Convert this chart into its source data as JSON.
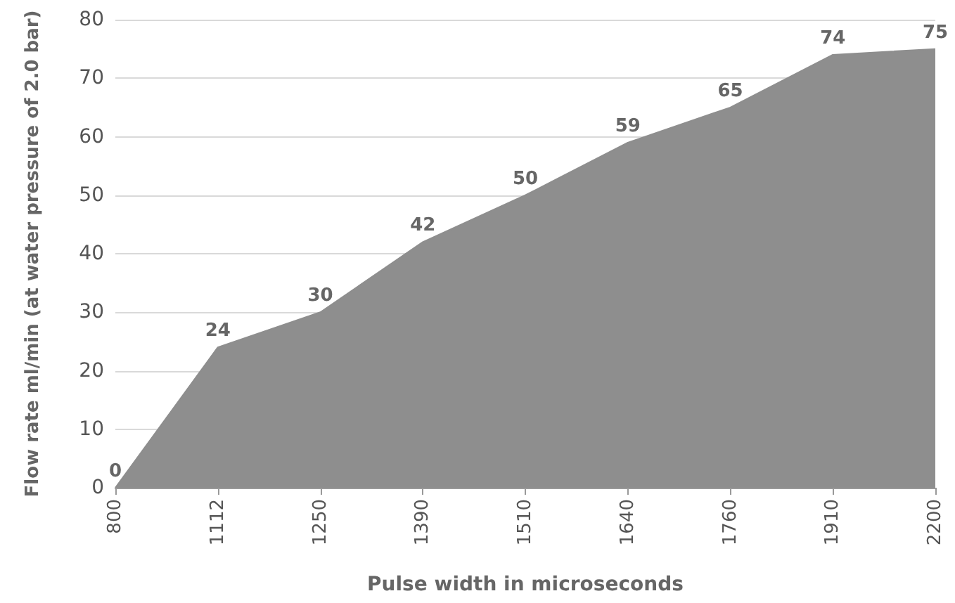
{
  "chart_data": {
    "type": "area",
    "xlabel": "Pulse width in microseconds",
    "ylabel": "Flow rate ml/min (at water pressure of 2.0 bar)",
    "categories": [
      "800",
      "1112",
      "1250",
      "1390",
      "1510",
      "1640",
      "1760",
      "1910",
      "2200"
    ],
    "values": [
      0,
      24,
      30,
      42,
      50,
      59,
      65,
      74,
      75
    ],
    "color": "#8e8e8e",
    "ylim": [
      0,
      80
    ],
    "yticks": [
      0,
      10,
      20,
      30,
      40,
      50,
      60,
      70,
      80
    ],
    "grid": "y",
    "data_labels": true
  }
}
